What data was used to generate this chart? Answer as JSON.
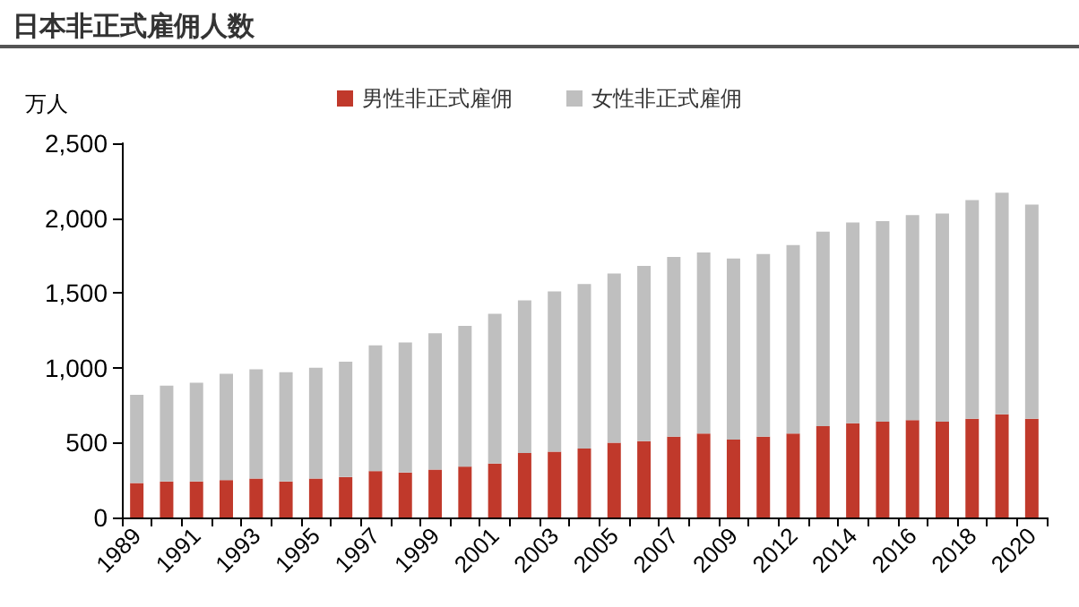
{
  "chart_data": {
    "type": "bar",
    "title": "日本非正式雇佣人数",
    "ylabel": "万人",
    "stacked": true,
    "legend": "top",
    "grid": false,
    "categories": [
      "1989",
      null,
      "1991",
      null,
      "1993",
      null,
      "1995",
      null,
      "1997",
      null,
      "1999",
      null,
      "2001",
      null,
      "2003",
      null,
      "2005",
      null,
      "2007",
      null,
      "2009",
      null,
      "2012",
      null,
      "2014",
      null,
      "2016",
      null,
      "2018",
      null,
      "2020"
    ],
    "series": [
      {
        "name": "男性非正式雇佣",
        "color": "#c0392b",
        "values": [
          230,
          240,
          240,
          250,
          260,
          240,
          260,
          270,
          310,
          300,
          320,
          340,
          360,
          430,
          440,
          460,
          500,
          510,
          540,
          560,
          520,
          540,
          560,
          610,
          630,
          640,
          650,
          640,
          660,
          690,
          660
        ]
      },
      {
        "name": "女性非正式雇佣",
        "color": "#bfbfbf",
        "values": [
          590,
          640,
          660,
          710,
          730,
          730,
          740,
          770,
          840,
          870,
          910,
          940,
          1000,
          1020,
          1070,
          1100,
          1130,
          1170,
          1200,
          1210,
          1210,
          1220,
          1260,
          1300,
          1340,
          1340,
          1370,
          1390,
          1460,
          1480,
          1430
        ]
      }
    ],
    "ylim": [
      0,
      2500
    ],
    "yticks": [
      0,
      500,
      {
        "value": 1000,
        "label": "1,000"
      },
      {
        "value": 1500,
        "label": "1,500"
      },
      {
        "value": 2000,
        "label": "2,000"
      },
      {
        "value": 2500,
        "label": "2,500"
      }
    ]
  }
}
